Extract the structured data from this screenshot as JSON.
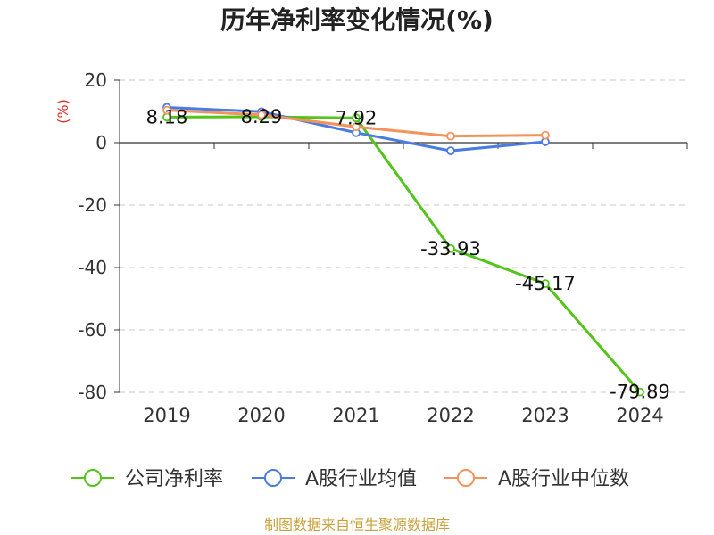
{
  "chart_data": {
    "type": "line",
    "title": "历年净利率变化情况(%)",
    "ylabel": "(%)",
    "xlabel": "",
    "categories": [
      "2019",
      "2020",
      "2021",
      "2022",
      "2023",
      "2024"
    ],
    "ylim": [
      -80,
      20
    ],
    "yticks": [
      20,
      0,
      -20,
      -40,
      -60,
      -80
    ],
    "grid": true,
    "legend_position": "bottom",
    "series": [
      {
        "name": "公司净利率",
        "color": "#52c41a",
        "values": [
          8.18,
          8.29,
          7.92,
          -33.93,
          -45.17,
          -79.89
        ],
        "labels": [
          "8.18",
          "8.29",
          "7.92",
          "-33.93",
          "-45.17",
          "-79.89"
        ]
      },
      {
        "name": "A股行业均值",
        "color": "#4a7be0",
        "values": [
          11.3,
          9.9,
          3.2,
          -2.6,
          0.3,
          null
        ]
      },
      {
        "name": "A股行业中位数",
        "color": "#f4925a",
        "values": [
          10.4,
          8.9,
          5.1,
          2.1,
          2.4,
          null
        ]
      }
    ],
    "ylabel_color": "#e0302a"
  },
  "footer": {
    "source": "制图数据来自恒生聚源数据库",
    "source_color": "#c9a13b"
  }
}
